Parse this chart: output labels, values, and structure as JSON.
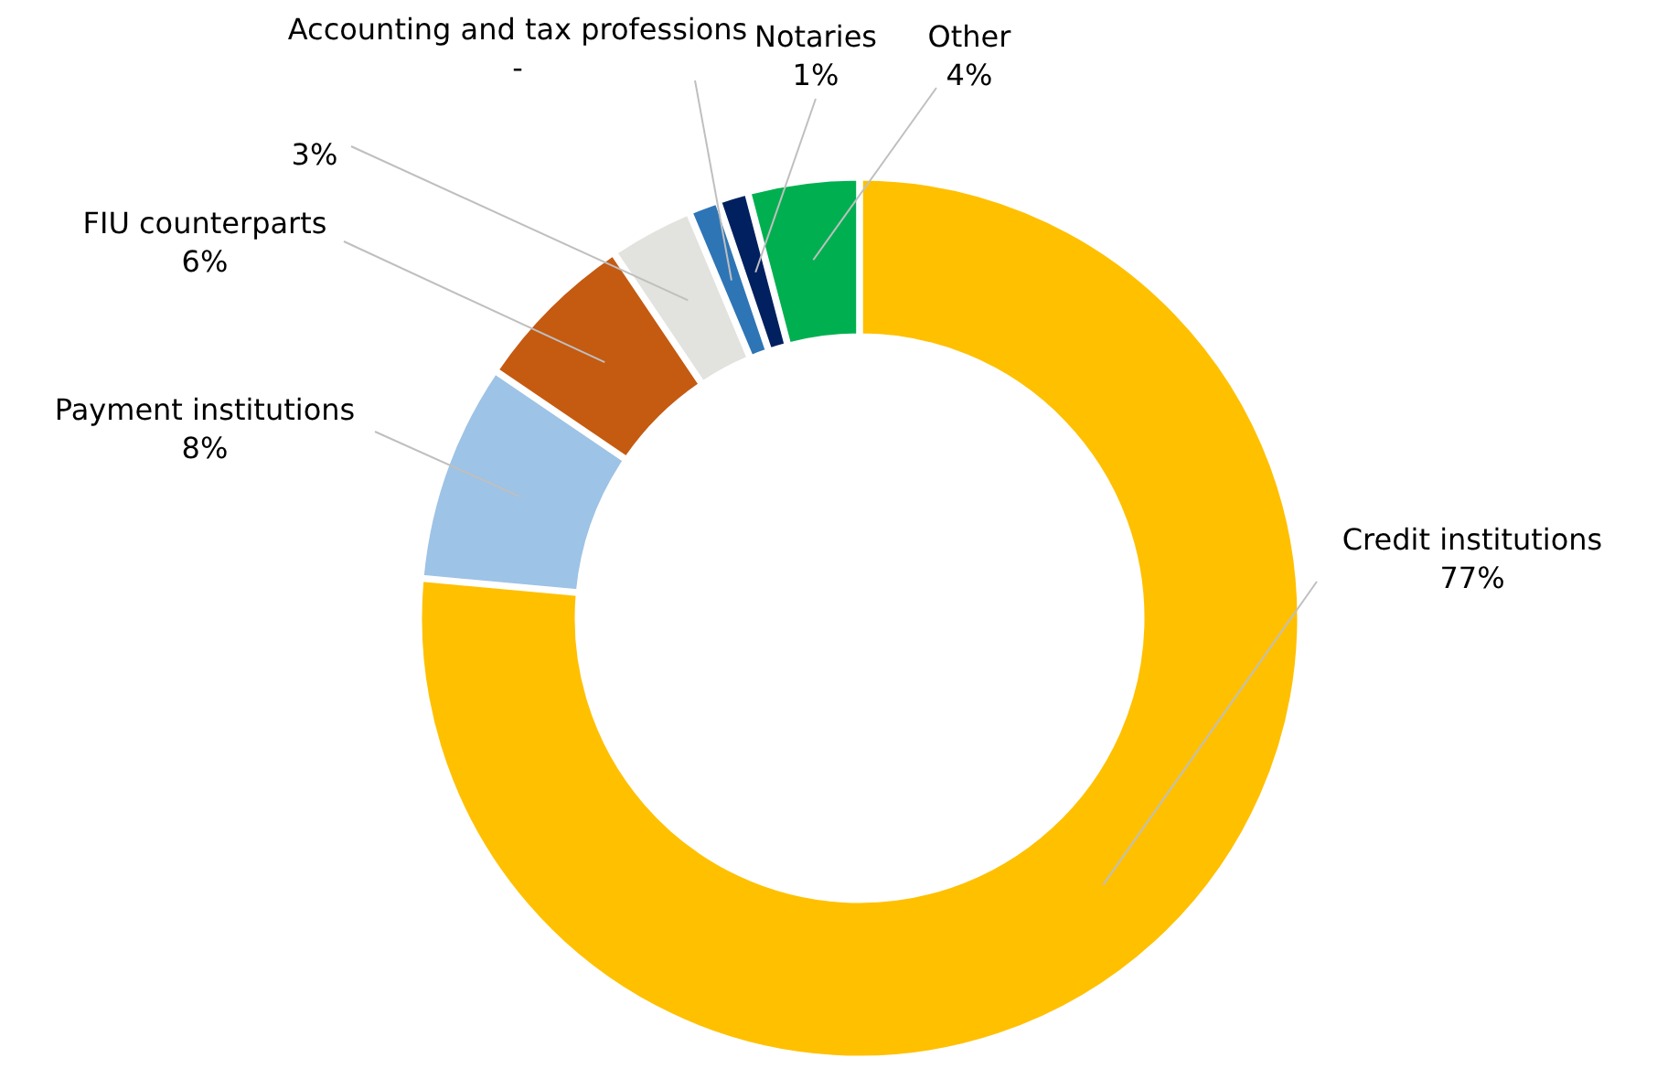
{
  "chart_data": {
    "type": "donut",
    "categories": [
      "Credit institutions",
      "Payment institutions",
      "FIU counterparts",
      null,
      "Accounting and tax professions",
      "Notaries",
      "Other"
    ],
    "values": [
      77,
      8,
      6,
      3,
      1,
      1,
      4
    ],
    "value_labels": [
      "77%",
      "8%",
      "6%",
      "3%",
      "-",
      "1%",
      "4%"
    ],
    "colors": [
      "#ffc000",
      "#9dc3e6",
      "#c55a11",
      "#e2e2de",
      "#2e75b6",
      "#002060",
      "#00b050"
    ]
  }
}
